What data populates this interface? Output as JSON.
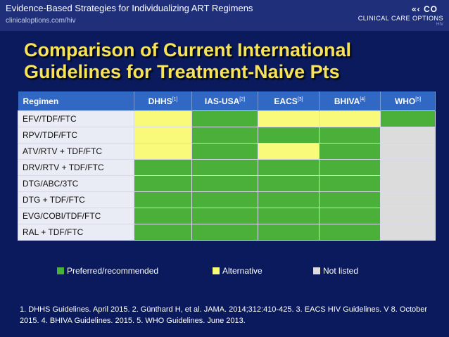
{
  "header": {
    "title": "Evidence-Based Strategies for Individualizing ART Regimens",
    "url": "clinicaloptions.com/hiv",
    "logo_arrows": "«‹ CO",
    "logo_brand": "CLINICAL CARE OPTIONS",
    "logo_sub": "HIV"
  },
  "slide_title": "Comparison of Current International Guidelines for Treatment-Naive Pts",
  "table": {
    "headers": [
      {
        "name": "Regimen",
        "sup": ""
      },
      {
        "name": "DHHS",
        "sup": "[1]"
      },
      {
        "name": "IAS-USA",
        "sup": "[2]"
      },
      {
        "name": "EACS",
        "sup": "[3]"
      },
      {
        "name": "BHIVA",
        "sup": "[4]"
      },
      {
        "name": "WHO",
        "sup": "[5]"
      }
    ],
    "rows": [
      {
        "regimen": "EFV/TDF/FTC",
        "status": [
          "alt",
          "pref",
          "alt",
          "alt",
          "pref"
        ]
      },
      {
        "regimen": "RPV/TDF/FTC",
        "status": [
          "alt",
          "pref",
          "pref",
          "pref",
          "nl"
        ]
      },
      {
        "regimen": "ATV/RTV + TDF/FTC",
        "status": [
          "alt",
          "pref",
          "alt",
          "pref",
          "nl"
        ]
      },
      {
        "regimen": "DRV/RTV + TDF/FTC",
        "status": [
          "pref",
          "pref",
          "pref",
          "pref",
          "nl"
        ]
      },
      {
        "regimen": "DTG/ABC/3TC",
        "status": [
          "pref",
          "pref",
          "pref",
          "pref",
          "nl"
        ]
      },
      {
        "regimen": "DTG + TDF/FTC",
        "status": [
          "pref",
          "pref",
          "pref",
          "pref",
          "nl"
        ]
      },
      {
        "regimen": "EVG/COBI/TDF/FTC",
        "status": [
          "pref",
          "pref",
          "pref",
          "pref",
          "nl"
        ]
      },
      {
        "regimen": "RAL + TDF/FTC",
        "status": [
          "pref",
          "pref",
          "pref",
          "pref",
          "nl"
        ]
      }
    ]
  },
  "legend": {
    "preferred": "Preferred/recommended",
    "alternative": "Alternative",
    "not_listed": "Not listed"
  },
  "colors": {
    "preferred": "#4ab03a",
    "alternative": "#fafa7a",
    "not_listed": "#dcdcdc",
    "title": "#f7e35a",
    "header_bg": "#3068c4"
  },
  "references": "1. DHHS Guidelines. April 2015. 2. Günthard H, et al. JAMA. 2014;312:410-425. 3. EACS HIV Guidelines. V 8. October 2015. 4. BHIVA Guidelines. 2015. 5. WHO Guidelines. June 2013."
}
